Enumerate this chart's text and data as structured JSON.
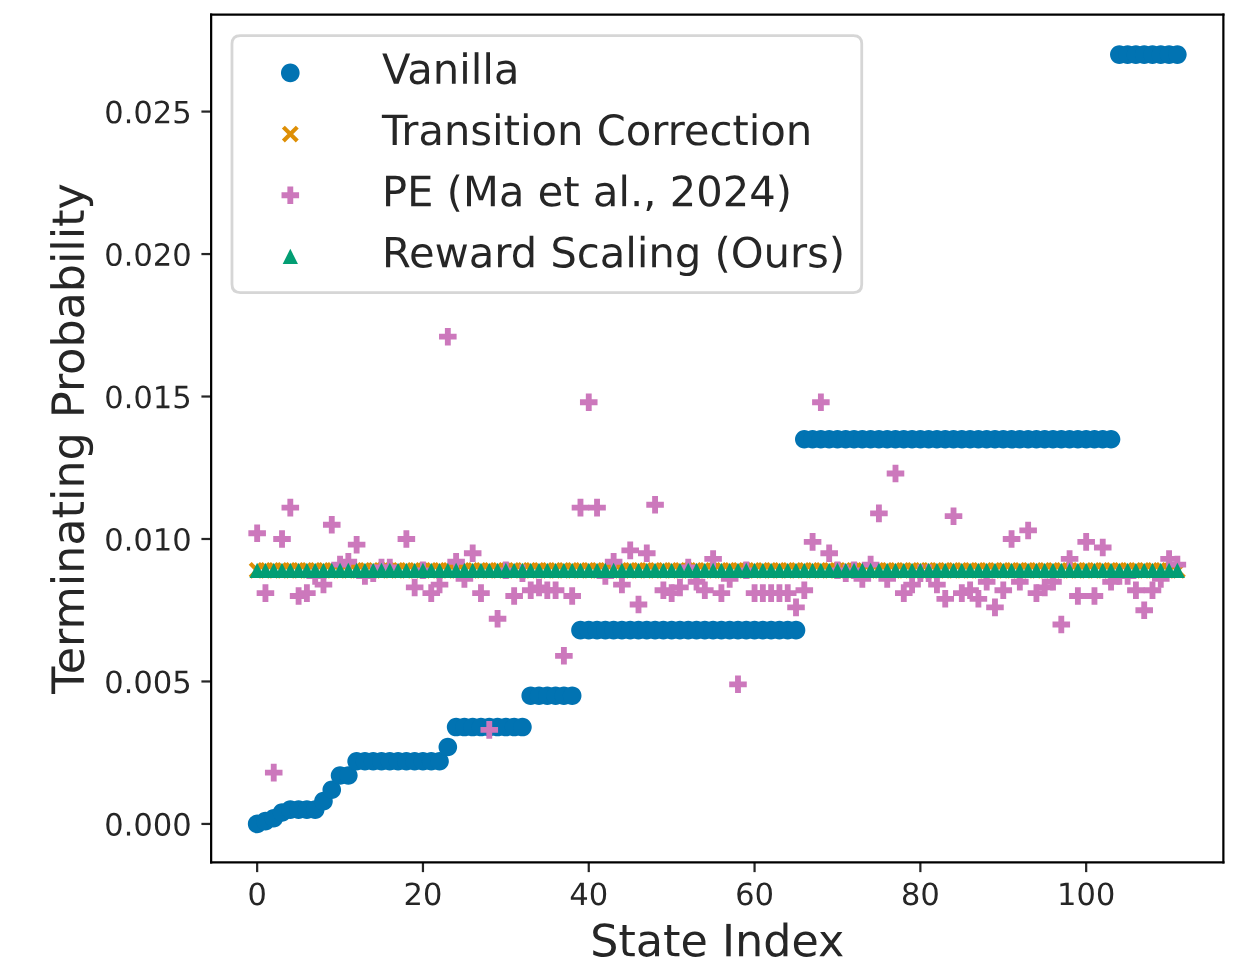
{
  "chart_data": {
    "type": "scatter",
    "xlabel": "State Index",
    "ylabel": "Terminating Probability",
    "x": [
      0,
      1,
      2,
      3,
      4,
      5,
      6,
      7,
      8,
      9,
      10,
      11,
      12,
      13,
      14,
      15,
      16,
      17,
      18,
      19,
      20,
      21,
      22,
      23,
      24,
      25,
      26,
      27,
      28,
      29,
      30,
      31,
      32,
      33,
      34,
      35,
      36,
      37,
      38,
      39,
      40,
      41,
      42,
      43,
      44,
      45,
      46,
      47,
      48,
      49,
      50,
      51,
      52,
      53,
      54,
      55,
      56,
      57,
      58,
      59,
      60,
      61,
      62,
      63,
      64,
      65,
      66,
      67,
      68,
      69,
      70,
      71,
      72,
      73,
      74,
      75,
      76,
      77,
      78,
      79,
      80,
      81,
      82,
      83,
      84,
      85,
      86,
      87,
      88,
      89,
      90,
      91,
      92,
      93,
      94,
      95,
      96,
      97,
      98,
      99,
      100,
      101,
      102,
      103,
      104,
      105,
      106,
      107,
      108,
      109,
      110,
      111
    ],
    "xlim": [
      -5.55,
      116.55
    ],
    "xticks": [
      0,
      20,
      40,
      60,
      80,
      100
    ],
    "ylim": [
      -0.00135,
      0.0284
    ],
    "yticks": [
      {
        "value": 0,
        "label": "0.000"
      },
      {
        "value": 0.005,
        "label": "0.005"
      },
      {
        "value": 0.01,
        "label": "0.010"
      },
      {
        "value": 0.015,
        "label": "0.015"
      },
      {
        "value": 0.02,
        "label": "0.020"
      },
      {
        "value": 0.025,
        "label": "0.025"
      }
    ],
    "grid": false,
    "legend": "top left",
    "series": [
      {
        "name": "Vanilla",
        "color": "#0173b2",
        "marker": "circle",
        "values": [
          0.0,
          0.0001,
          0.0002,
          0.0004,
          0.0005,
          0.0005,
          0.0005,
          0.0005,
          0.0008,
          0.0012,
          0.0017,
          0.0017,
          0.0022,
          0.0022,
          0.0022,
          0.0022,
          0.0022,
          0.0022,
          0.0022,
          0.0022,
          0.0022,
          0.0022,
          0.0022,
          0.0027,
          0.0034,
          0.0034,
          0.0034,
          0.0034,
          0.0034,
          0.0034,
          0.0034,
          0.0034,
          0.0034,
          0.0045,
          0.0045,
          0.0045,
          0.0045,
          0.0045,
          0.0045,
          0.0068,
          0.0068,
          0.0068,
          0.0068,
          0.0068,
          0.0068,
          0.0068,
          0.0068,
          0.0068,
          0.0068,
          0.0068,
          0.0068,
          0.0068,
          0.0068,
          0.0068,
          0.0068,
          0.0068,
          0.0068,
          0.0068,
          0.0068,
          0.0068,
          0.0068,
          0.0068,
          0.0068,
          0.0068,
          0.0068,
          0.0068,
          0.0135,
          0.0135,
          0.0135,
          0.0135,
          0.0135,
          0.0135,
          0.0135,
          0.0135,
          0.0135,
          0.0135,
          0.0135,
          0.0135,
          0.0135,
          0.0135,
          0.0135,
          0.0135,
          0.0135,
          0.0135,
          0.0135,
          0.0135,
          0.0135,
          0.0135,
          0.0135,
          0.0135,
          0.0135,
          0.0135,
          0.0135,
          0.0135,
          0.0135,
          0.0135,
          0.0135,
          0.0135,
          0.0135,
          0.0135,
          0.0135,
          0.0135,
          0.0135,
          0.0135,
          0.027,
          0.027,
          0.027,
          0.027,
          0.027,
          0.027,
          0.027,
          0.027
        ]
      },
      {
        "name": "Transition Correction",
        "color": "#de8f05",
        "marker": "cross",
        "values": [
          0.0089,
          0.0089,
          0.0089,
          0.0089,
          0.0089,
          0.0089,
          0.0089,
          0.0089,
          0.0089,
          0.0089,
          0.0089,
          0.0089,
          0.0089,
          0.0089,
          0.0089,
          0.0089,
          0.0089,
          0.0089,
          0.0089,
          0.0089,
          0.0089,
          0.0089,
          0.0089,
          0.0089,
          0.0089,
          0.0089,
          0.0089,
          0.0089,
          0.0089,
          0.0089,
          0.0089,
          0.0089,
          0.0089,
          0.0089,
          0.0089,
          0.0089,
          0.0089,
          0.0089,
          0.0089,
          0.0089,
          0.0089,
          0.0089,
          0.0089,
          0.0089,
          0.0089,
          0.0089,
          0.0089,
          0.0089,
          0.0089,
          0.0089,
          0.0089,
          0.0089,
          0.0089,
          0.0089,
          0.0089,
          0.0089,
          0.0089,
          0.0089,
          0.0089,
          0.0089,
          0.0089,
          0.0089,
          0.0089,
          0.0089,
          0.0089,
          0.0089,
          0.0089,
          0.0089,
          0.0089,
          0.0089,
          0.0089,
          0.0089,
          0.0089,
          0.0089,
          0.0089,
          0.0089,
          0.0089,
          0.0089,
          0.0089,
          0.0089,
          0.0089,
          0.0089,
          0.0089,
          0.0089,
          0.0089,
          0.0089,
          0.0089,
          0.0089,
          0.0089,
          0.0089,
          0.0089,
          0.0089,
          0.0089,
          0.0089,
          0.0089,
          0.0089,
          0.0089,
          0.0089,
          0.0089,
          0.0089,
          0.0089,
          0.0089,
          0.0089,
          0.0089,
          0.0089,
          0.0089,
          0.0089,
          0.0089,
          0.0089,
          0.0089,
          0.0089,
          0.0089
        ]
      },
      {
        "name": "PE (Ma et al., 2024)",
        "color": "#cc78bc",
        "marker": "plus",
        "values": [
          0.0102,
          0.0081,
          0.0018,
          0.01,
          0.0111,
          0.008,
          0.0081,
          0.0087,
          0.0084,
          0.0105,
          0.0091,
          0.0092,
          0.0098,
          0.0087,
          0.0088,
          0.009,
          0.009,
          null,
          0.01,
          0.0083,
          0.0089,
          0.0081,
          0.0084,
          0.0171,
          0.0092,
          0.0086,
          0.0095,
          0.0081,
          0.0033,
          0.0072,
          0.0089,
          0.008,
          0.0088,
          0.0082,
          0.0083,
          0.0082,
          0.0082,
          0.0059,
          0.008,
          0.0111,
          0.0148,
          0.0111,
          0.0087,
          0.0092,
          0.0084,
          0.0096,
          0.0077,
          0.0095,
          0.0112,
          0.0082,
          0.0081,
          0.0083,
          0.009,
          0.0085,
          0.0082,
          0.0093,
          0.0081,
          0.0086,
          0.0049,
          0.0089,
          0.0081,
          0.0081,
          0.0081,
          0.0081,
          0.0081,
          0.0076,
          0.0082,
          0.0099,
          0.0148,
          0.0095,
          0.0089,
          0.0088,
          0.0089,
          0.0086,
          0.0091,
          0.0109,
          0.0086,
          0.0123,
          0.0081,
          0.0084,
          0.0088,
          0.0088,
          0.0084,
          0.0079,
          0.0108,
          0.0081,
          0.0082,
          0.0079,
          0.0085,
          0.0076,
          0.0082,
          0.01,
          0.0085,
          0.0103,
          0.0081,
          0.0083,
          0.0085,
          0.007,
          0.0093,
          0.008,
          0.0099,
          0.008,
          0.0097,
          0.0085,
          0.0087,
          0.0087,
          0.0082,
          0.0075,
          0.0082,
          0.0086,
          0.0093,
          0.0091
        ]
      },
      {
        "name": "Reward Scaling (Ours)",
        "color": "#029e73",
        "marker": "triangle",
        "values": [
          0.0089,
          0.0089,
          0.0089,
          0.0089,
          0.0089,
          0.0089,
          0.0089,
          0.0089,
          0.0089,
          0.0089,
          0.0089,
          0.0089,
          0.0089,
          0.0089,
          0.0089,
          0.0089,
          0.0089,
          0.0089,
          0.0089,
          0.0089,
          0.0089,
          0.0089,
          0.0089,
          0.0089,
          0.0089,
          0.0089,
          0.0089,
          0.0089,
          0.0089,
          0.0089,
          0.0089,
          0.0089,
          0.0089,
          0.0089,
          0.0089,
          0.0089,
          0.0089,
          0.0089,
          0.0089,
          0.0089,
          0.0089,
          0.0089,
          0.0089,
          0.0089,
          0.0089,
          0.0089,
          0.0089,
          0.0089,
          0.0089,
          0.0089,
          0.0089,
          0.0089,
          0.0089,
          0.0089,
          0.0089,
          0.0089,
          0.0089,
          0.0089,
          0.0089,
          0.0089,
          0.0089,
          0.0089,
          0.0089,
          0.0089,
          0.0089,
          0.0089,
          0.0089,
          0.0089,
          0.0089,
          0.0089,
          0.0089,
          0.0089,
          0.0089,
          0.0089,
          0.0089,
          0.0089,
          0.0089,
          0.0089,
          0.0089,
          0.0089,
          0.0089,
          0.0089,
          0.0089,
          0.0089,
          0.0089,
          0.0089,
          0.0089,
          0.0089,
          0.0089,
          0.0089,
          0.0089,
          0.0089,
          0.0089,
          0.0089,
          0.0089,
          0.0089,
          0.0089,
          0.0089,
          0.0089,
          0.0089,
          0.0089,
          0.0089,
          0.0089,
          0.0089,
          0.0089,
          0.0089,
          0.0089,
          0.0089,
          0.0089,
          0.0089,
          0.0089,
          0.0089
        ]
      }
    ]
  }
}
